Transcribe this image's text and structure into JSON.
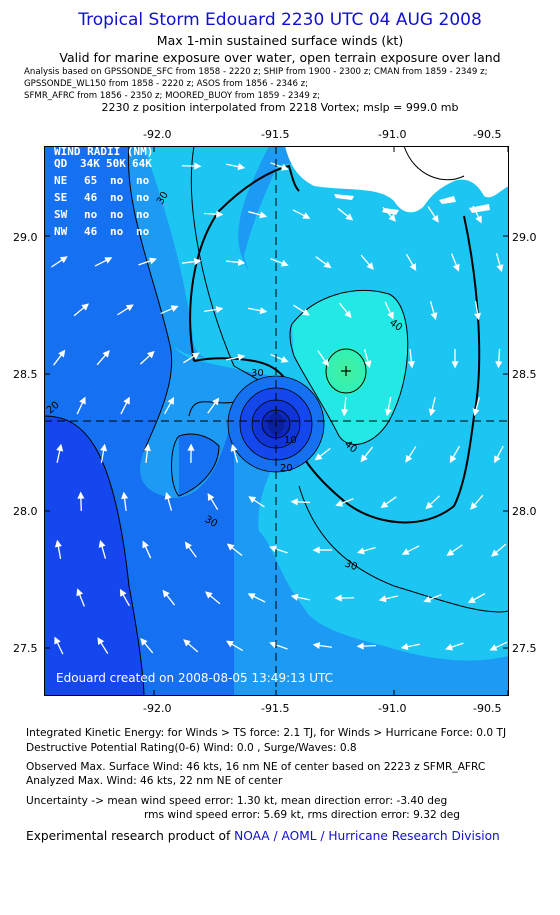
{
  "header": {
    "title": "Tropical Storm Edouard 2230 UTC 04 AUG 2008",
    "subtitle1": "Max 1-min sustained surface winds (kt)",
    "subtitle2": "Valid for marine exposure over water, open terrain exposure over land",
    "analysis1": "Analysis based on  GPSSONDE_SFC from 1858 - 2220 z;  SHIP from 1900 - 2300 z;  CMAN from 1859 - 2349 z;",
    "analysis2": "GPSSONDE_WL150 from 1858 - 2220 z;  ASOS from 1856 - 2346 z;",
    "analysis3": "SFMR_AFRC from 1856 - 2350 z;   MOORED_BUOY from 1859 - 2349 z;",
    "position_line": "2230 z position interpolated from 2218 Vortex; mslp = 999.0 mb"
  },
  "axes": {
    "lon_ticks": [
      "-92.0",
      "-91.5",
      "-91.0",
      "-90.5"
    ],
    "lat_ticks": [
      "29.0",
      "28.5",
      "28.0",
      "27.5"
    ],
    "lon_range": [
      -92.43,
      -90.48
    ],
    "lat_range": [
      27.33,
      29.34
    ]
  },
  "storm_center": {
    "lon": -91.47,
    "lat": 28.33
  },
  "wind_radii": {
    "title": "WIND RADII (NM)",
    "header": [
      "QD",
      "34K",
      "50K",
      "64K"
    ],
    "rows": [
      [
        "NE",
        "65",
        "no",
        "no"
      ],
      [
        "SE",
        "46",
        "no",
        "no"
      ],
      [
        "SW",
        "no",
        "no",
        "no"
      ],
      [
        "NW",
        "46",
        "no",
        "no"
      ]
    ]
  },
  "contour_labels": [
    "10",
    "20",
    "20",
    "30",
    "30",
    "30",
    "30",
    "40",
    "40"
  ],
  "credit": "Edouard    created on 2008-08-05 13:49:13 UTC",
  "colors": {
    "c0": "#1448ee",
    "c10": "#1670f2",
    "c20": "#1c9af4",
    "c30": "#1dc6f2",
    "c40": "#23e8e6",
    "c45": "#2ef0bc",
    "c50": "#46f09a",
    "core": "#0a1f9e",
    "land": "#ffffff",
    "title": "#1010d0"
  },
  "footer": {
    "ike": "Integrated Kinetic Energy:  for Winds > TS force: 2.1 TJ,  for Winds > Hurricane Force: 0.0 TJ",
    "dpr": "Destructive Potential Rating(0-6)   Wind: 0.0 , Surge/Waves: 0.8",
    "observed": "Observed Max. Surface Wind: 46 kts, 16 nm NE of center based on 2223 z SFMR_AFRC",
    "analyzed": "Analyzed Max. Wind: 46 kts, 22 nm NE of center",
    "uncert1": "Uncertainty -> mean wind speed error: 1.30 kt,   mean direction error:  -3.40 deg",
    "uncert2": "rms wind speed error: 5.69 kt,   rms direction error: 9.32 deg",
    "credit_prefix": "Experimental research product of ",
    "credit_link": "NOAA / AOML / Hurricane Research Division"
  }
}
